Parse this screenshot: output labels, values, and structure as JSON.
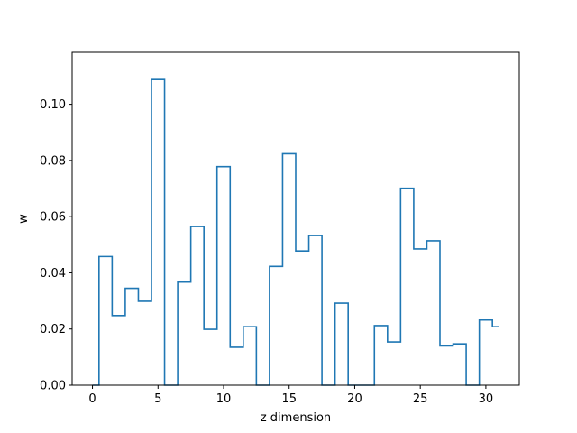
{
  "chart_data": {
    "type": "line",
    "drawstyle": "steps-mid",
    "title": "",
    "xlabel": "z dimension",
    "ylabel": "w",
    "xlim": [
      -1.55,
      32.55
    ],
    "ylim": [
      0,
      0.1185
    ],
    "x_ticks": [
      0,
      5,
      10,
      15,
      20,
      25,
      30
    ],
    "y_ticks": [
      0.0,
      0.02,
      0.04,
      0.06,
      0.08,
      0.1
    ],
    "x_tick_labels": [
      "0",
      "5",
      "10",
      "15",
      "20",
      "25",
      "30"
    ],
    "y_tick_labels": [
      "0.00",
      "0.02",
      "0.04",
      "0.06",
      "0.08",
      "0.10"
    ],
    "grid": false,
    "series": [
      {
        "color": "#1f77b4",
        "x": [
          0,
          1,
          2,
          3,
          4,
          5,
          6,
          7,
          8,
          9,
          10,
          11,
          12,
          13,
          14,
          15,
          16,
          17,
          18,
          19,
          20,
          21,
          22,
          23,
          24,
          25,
          26,
          27,
          28,
          29,
          30,
          31
        ],
        "values": [
          0.0,
          0.0458,
          0.0248,
          0.0345,
          0.0299,
          0.1088,
          0.0,
          0.0367,
          0.0565,
          0.0199,
          0.0778,
          0.0135,
          0.0208,
          0.0,
          0.0423,
          0.0824,
          0.0478,
          0.0533,
          0.0,
          0.0292,
          0.0,
          0.0,
          0.0212,
          0.0154,
          0.0701,
          0.0485,
          0.0514,
          0.014,
          0.0147,
          0.0,
          0.0232,
          0.0208
        ]
      }
    ]
  }
}
